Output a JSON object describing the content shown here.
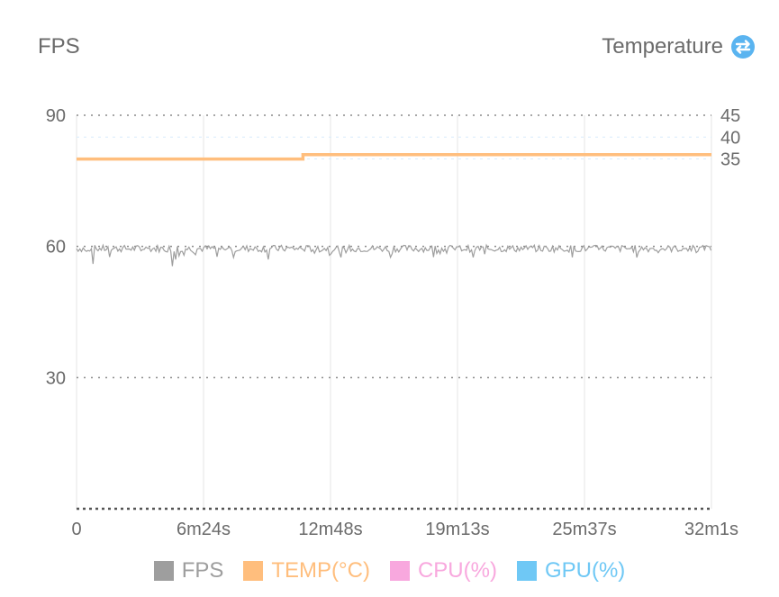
{
  "header": {
    "left_title": "FPS",
    "right_title": "Temperature",
    "toggle_icon": "swap-vertical-icon"
  },
  "chart_data": {
    "type": "line",
    "x_tick_labels": [
      "0",
      "6m24s",
      "12m48s",
      "19m13s",
      "25m37s",
      "32m1s"
    ],
    "x_range_seconds": [
      0,
      1921
    ],
    "y_left": {
      "label": "FPS",
      "ticks": [
        30,
        60,
        90
      ],
      "range": [
        0,
        90
      ]
    },
    "y_right": {
      "label": "Temperature",
      "ticks": [
        35,
        40,
        45
      ],
      "range": [
        -45,
        45
      ]
    },
    "grid": true,
    "legend_position": "bottom",
    "series": [
      {
        "name": "FPS",
        "axis": "left",
        "color": "#9e9e9e",
        "baseline": 59.5,
        "dips": [
          [
            50,
            56
          ],
          [
            290,
            55.5
          ],
          [
            300,
            57
          ],
          [
            580,
            57
          ],
          [
            800,
            57.5
          ],
          [
            950,
            57.5
          ],
          [
            1200,
            57.5
          ],
          [
            1500,
            57.5
          ]
        ]
      },
      {
        "name": "TEMP(°C)",
        "axis": "right",
        "color": "#ffbe7d",
        "x": [
          0,
          685,
          685,
          1921
        ],
        "y": [
          35,
          35,
          36,
          36
        ]
      },
      {
        "name": "CPU(%)",
        "axis": "right",
        "color": "#f8a8de"
      },
      {
        "name": "GPU(%)",
        "axis": "right",
        "color": "#6fc8f5"
      }
    ]
  },
  "legend": [
    {
      "label": "FPS",
      "color": "#9e9e9e"
    },
    {
      "label": "TEMP(°C)",
      "color": "#ffbe7d"
    },
    {
      "label": "CPU(%)",
      "color": "#f8a8de"
    },
    {
      "label": "GPU(%)",
      "color": "#6fc8f5"
    }
  ],
  "colors": {
    "toggle": "#5ab4f0"
  }
}
